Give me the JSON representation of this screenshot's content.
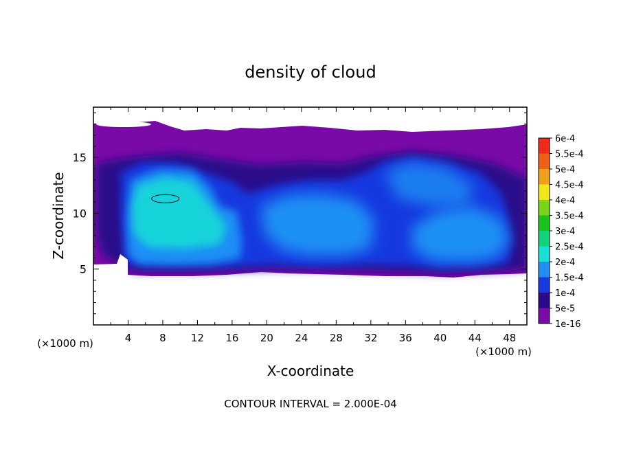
{
  "chart_data": {
    "type": "heatmap",
    "title": "density of cloud",
    "xlabel": "X-coordinate",
    "ylabel": "Z-coordinate",
    "x_unit_label_left": "(×1000 m)",
    "x_unit_label_right": "(×1000 m)",
    "xlim": [
      0,
      50
    ],
    "ylim": [
      0,
      19.5
    ],
    "x_ticks": [
      4,
      8,
      12,
      16,
      20,
      24,
      28,
      32,
      36,
      40,
      44,
      48
    ],
    "x_tick_labels": [
      "4",
      "8",
      "12",
      "16",
      "20",
      "24",
      "28",
      "32",
      "36",
      "40",
      "44",
      "48"
    ],
    "y_ticks": [
      5,
      10,
      15
    ],
    "y_tick_labels": [
      "5",
      "10",
      "15"
    ],
    "footer": "CONTOUR INTERVAL = 2.000E-04",
    "colorbar": {
      "labels": [
        "1e-16",
        "5e-5",
        "1e-4",
        "1.5e-4",
        "2e-4",
        "2.5e-4",
        "3e-4",
        "3.5e-4",
        "4e-4",
        "4.5e-4",
        "5e-4",
        "5.5e-4",
        "6e-4"
      ],
      "colors": [
        "#7a0aa8",
        "#2a0a8a",
        "#1838e0",
        "#1f8ff5",
        "#18e0d6",
        "#12d47a",
        "#18c418",
        "#7ad418",
        "#f0e818",
        "#f0a018",
        "#f06018",
        "#f02a18",
        "#f8a8a8"
      ]
    },
    "regions": [
      {
        "name": "cloud-layer",
        "level": "1e-16",
        "z_bottom": 4.5,
        "z_top": 18.5
      },
      {
        "name": "core-left",
        "level": "2e-4",
        "x_center": 7,
        "z_center": 10.5
      },
      {
        "name": "core-center",
        "level": "1.5e-4",
        "x_center": 25,
        "z_center": 9.5
      },
      {
        "name": "core-right",
        "level": "1.5e-4",
        "x_center": 40,
        "z_center": 8.5
      },
      {
        "name": "contour-2e-4",
        "level": "2e-4",
        "x_center": 8.3,
        "z_center": 11.3
      }
    ]
  }
}
